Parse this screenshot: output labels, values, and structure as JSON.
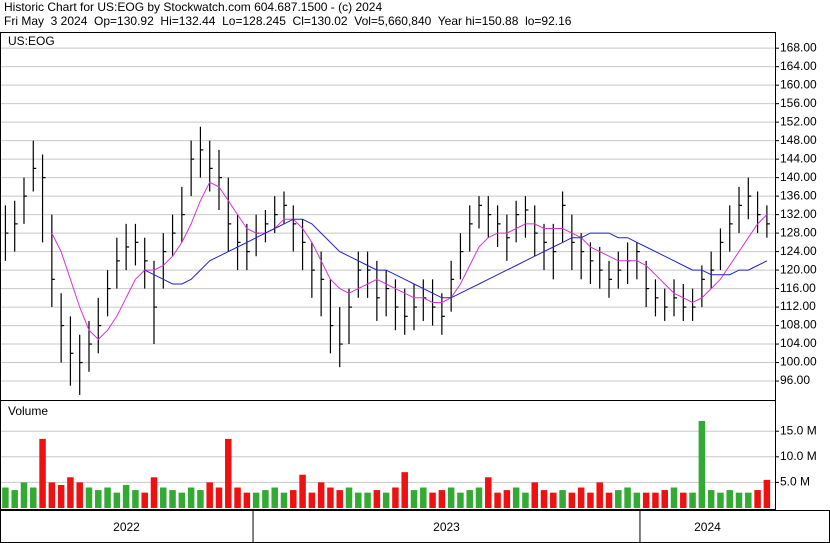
{
  "chart_data": {
    "type": "ohlc",
    "title": "Historic Chart for US:EOG by Stockwatch.com 604.687.1500 - (c) 2024",
    "subtitle": "Fri May  3 2024  Op=130.92  Hi=132.44  Lo=128.245  Cl=130.02  Vol=5,660,840  Year hi=150.88  lo=92.16",
    "symbol": "US:EOG",
    "volume_title": "Volume",
    "x": [
      2022.36,
      2022.384,
      2022.408,
      2022.432,
      2022.456,
      2022.48,
      2022.504,
      2022.528,
      2022.552,
      2022.576,
      2022.6,
      2022.624,
      2022.648,
      2022.672,
      2022.696,
      2022.72,
      2022.744,
      2022.768,
      2022.792,
      2022.816,
      2022.84,
      2022.864,
      2022.888,
      2022.912,
      2022.936,
      2022.96,
      2022.984,
      2023.008,
      2023.032,
      2023.056,
      2023.08,
      2023.104,
      2023.128,
      2023.152,
      2023.176,
      2023.2,
      2023.224,
      2023.248,
      2023.272,
      2023.296,
      2023.32,
      2023.344,
      2023.368,
      2023.392,
      2023.416,
      2023.44,
      2023.464,
      2023.488,
      2023.512,
      2023.536,
      2023.56,
      2023.584,
      2023.608,
      2023.632,
      2023.656,
      2023.68,
      2023.704,
      2023.728,
      2023.752,
      2023.776,
      2023.8,
      2023.824,
      2023.848,
      2023.872,
      2023.896,
      2023.92,
      2023.944,
      2023.968,
      2023.992,
      2024.016,
      2024.04,
      2024.064,
      2024.088,
      2024.112,
      2024.136,
      2024.16,
      2024.184,
      2024.208,
      2024.232,
      2024.256,
      2024.28,
      2024.304,
      2024.328
    ],
    "xlim": [
      2022.346,
      2024.349
    ],
    "xticks": [
      2023,
      2024
    ],
    "period_labels": [
      "2022",
      "2023",
      "2024"
    ],
    "high": [
      134,
      135,
      140,
      148,
      145,
      132,
      115,
      110,
      106,
      109,
      114,
      120,
      127,
      130,
      130,
      127,
      122,
      128,
      132,
      138,
      148,
      151,
      148,
      146,
      140,
      132,
      130,
      132,
      133,
      136,
      137,
      134,
      131,
      126,
      124,
      118,
      112,
      116,
      124,
      124,
      122,
      120,
      118,
      116,
      117,
      118,
      118,
      115,
      122,
      128,
      134,
      136,
      136,
      134,
      132,
      135,
      136,
      134,
      130,
      130,
      137,
      132,
      128,
      126,
      125,
      122,
      124,
      126,
      126,
      122,
      118,
      116,
      118,
      117,
      116,
      121,
      124,
      129,
      134,
      138,
      140,
      137,
      134
    ],
    "low": [
      122,
      124,
      130,
      137,
      126,
      112,
      100,
      95,
      93,
      98,
      102,
      110,
      116,
      120,
      121,
      116,
      104,
      116,
      123,
      126,
      136,
      140,
      137,
      133,
      124,
      120,
      120,
      123,
      126,
      128,
      130,
      124,
      120,
      114,
      110,
      102,
      99,
      104,
      114,
      114,
      109,
      110,
      107,
      106,
      107,
      109,
      108,
      106,
      111,
      118,
      124,
      129,
      127,
      125,
      122,
      126,
      127,
      123,
      120,
      118,
      126,
      120,
      118,
      117,
      116,
      114,
      116,
      117,
      118,
      112,
      110,
      109,
      110,
      109,
      109,
      112,
      116,
      120,
      124,
      128,
      131,
      128,
      127
    ],
    "close": [
      128,
      130,
      136,
      142,
      140,
      118,
      108,
      102,
      100,
      104,
      108,
      116,
      122,
      125,
      126,
      122,
      112,
      124,
      128,
      132,
      144,
      146,
      142,
      140,
      130,
      126,
      124,
      128,
      130,
      132,
      134,
      130,
      126,
      120,
      118,
      108,
      104,
      112,
      120,
      120,
      114,
      116,
      112,
      110,
      112,
      114,
      112,
      110,
      118,
      124,
      130,
      134,
      132,
      130,
      127,
      132,
      133,
      128,
      126,
      124,
      134,
      126,
      124,
      122,
      120,
      118,
      120,
      122,
      124,
      116,
      114,
      112,
      114,
      112,
      112,
      118,
      120,
      126,
      130,
      134,
      136,
      132,
      130
    ],
    "bar_color": "#000000",
    "series": [
      {
        "color": "#d633d6",
        "values": [
          null,
          null,
          null,
          null,
          null,
          128,
          124,
          118,
          112,
          107,
          105,
          107,
          110,
          114,
          118,
          120,
          120,
          121,
          123,
          126,
          130,
          135,
          139,
          138,
          135,
          132,
          129,
          128,
          128,
          129,
          131,
          131,
          129,
          126,
          122,
          118,
          116,
          115,
          116,
          117,
          118,
          117,
          116,
          115,
          114,
          114,
          113,
          113,
          114,
          117,
          121,
          125,
          127,
          128,
          128,
          129,
          130,
          130,
          129,
          129,
          129,
          128,
          127,
          125,
          124,
          123,
          122,
          122,
          122,
          121,
          119,
          117,
          115,
          114,
          113,
          114,
          116,
          118,
          121,
          124,
          127,
          130,
          132
        ]
      },
      {
        "color": "#2222cc",
        "values": [
          null,
          null,
          null,
          null,
          null,
          null,
          null,
          null,
          null,
          null,
          null,
          null,
          null,
          null,
          null,
          120,
          119,
          118,
          117,
          117,
          118,
          120,
          122,
          123,
          124,
          125,
          126,
          127,
          128,
          129,
          130,
          131,
          131,
          130,
          128,
          126,
          124,
          123,
          122,
          121,
          120,
          120,
          119,
          118,
          117,
          116,
          115,
          114,
          114,
          115,
          116,
          117,
          118,
          119,
          120,
          121,
          122,
          123,
          124,
          125,
          126,
          127,
          127,
          128,
          128,
          128,
          127,
          127,
          126,
          125,
          124,
          123,
          122,
          121,
          120,
          120,
          119,
          119,
          119,
          120,
          120,
          121,
          122
        ]
      }
    ],
    "ylim": [
      91.9,
      171.5
    ],
    "yticks": [
      {
        "value": 96,
        "label": "96.00"
      },
      {
        "value": 100,
        "label": "100.00"
      },
      {
        "value": 104,
        "label": "104.00"
      },
      {
        "value": 108,
        "label": "108.00"
      },
      {
        "value": 112,
        "label": "112.00"
      },
      {
        "value": 116,
        "label": "116.00"
      },
      {
        "value": 120,
        "label": "120.00"
      },
      {
        "value": 124,
        "label": "124.00"
      },
      {
        "value": 128,
        "label": "128.00"
      },
      {
        "value": 132,
        "label": "132.00"
      },
      {
        "value": 136,
        "label": "136.00"
      },
      {
        "value": 140,
        "label": "140.00"
      },
      {
        "value": 144,
        "label": "144.00"
      },
      {
        "value": 148,
        "label": "148.00"
      },
      {
        "value": 152,
        "label": "152.00"
      },
      {
        "value": 156,
        "label": "156.00"
      },
      {
        "value": 160,
        "label": "160.00"
      },
      {
        "value": 164,
        "label": "164.00"
      },
      {
        "value": 168,
        "label": "168.00"
      }
    ],
    "volume": [
      4,
      3.5,
      5,
      4,
      13.5,
      5,
      4.5,
      6,
      5,
      4,
      3.5,
      4,
      3,
      4.5,
      3.5,
      3,
      6,
      4,
      3.5,
      3,
      4,
      3.5,
      5,
      4,
      13.5,
      4,
      3,
      3,
      3.5,
      4,
      3,
      3.5,
      6.5,
      3,
      5,
      4,
      3.5,
      4,
      3,
      3,
      3.5,
      3,
      4,
      7,
      3.5,
      4,
      3,
      3.5,
      4,
      3,
      3.5,
      4,
      6,
      3,
      3.5,
      4,
      3,
      5,
      3.5,
      3,
      3.5,
      3,
      4,
      3,
      5,
      3,
      3.5,
      4,
      3,
      3,
      3,
      3.5,
      4,
      3,
      3,
      17,
      3.5,
      3,
      3.5,
      3,
      3,
      3.5,
      5.5
    ],
    "up_color": "#33aa33",
    "down_color": "#ee1111",
    "y2lim": [
      0,
      20.9
    ],
    "y2ticks": [
      {
        "value": 5,
        "label": "5.0 M"
      },
      {
        "value": 10,
        "label": "10.0 M"
      },
      {
        "value": 15,
        "label": "15.0 M"
      }
    ],
    "grid": true
  }
}
